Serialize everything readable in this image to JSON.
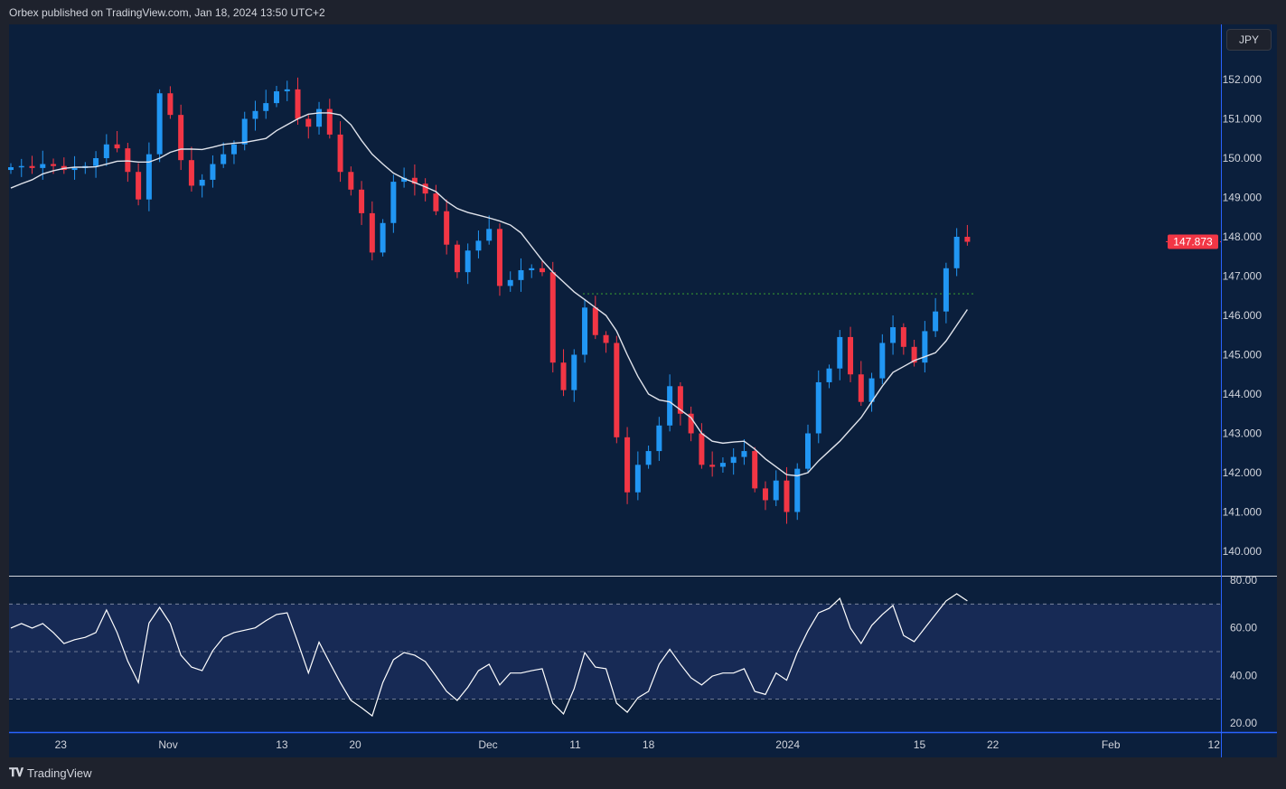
{
  "header": {
    "text": "Orbex published on TradingView.com, Jan 18, 2024 13:50 UTC+2"
  },
  "footer": {
    "brand": "TradingView",
    "logo_text": "TV"
  },
  "currency_button": "JPY",
  "colors": {
    "up": "#2196f3",
    "down": "#f23645",
    "ma": "#e0e3eb",
    "rsi": "#ffffff",
    "level": "#2e7d32",
    "background": "#0b1f3c"
  },
  "chart_data": [
    {
      "type": "candlestick",
      "title": "",
      "ylim": [
        139.6,
        153.3
      ],
      "ytick_labels": [
        "152.000",
        "151.000",
        "150.000",
        "149.000",
        "148.000",
        "147.000",
        "146.000",
        "145.000",
        "144.000",
        "143.000",
        "142.000",
        "141.000",
        "140.000"
      ],
      "yticks": [
        152,
        151,
        150,
        149,
        148,
        147,
        146,
        145,
        144,
        143,
        142,
        141,
        140
      ],
      "last_price": 147.873,
      "last_price_label": "147.873",
      "horizontal_level": 146.55,
      "xticks": [
        {
          "label": "23",
          "index": 4.7
        },
        {
          "label": "Nov",
          "index": 14.8
        },
        {
          "label": "13",
          "index": 25.5
        },
        {
          "label": "20",
          "index": 32.4
        },
        {
          "label": "Dec",
          "index": 44.9
        },
        {
          "label": "11",
          "index": 53.1
        },
        {
          "label": "18",
          "index": 60.0
        },
        {
          "label": "2024",
          "index": 73.1
        },
        {
          "label": "15",
          "index": 85.5
        },
        {
          "label": "22",
          "index": 92.4
        },
        {
          "label": "Feb",
          "index": 103.5
        },
        {
          "label": "12",
          "index": 113.2
        }
      ],
      "close": [
        149.77,
        149.8,
        149.75,
        149.85,
        149.8,
        149.7,
        149.75,
        149.8,
        150.0,
        150.35,
        150.25,
        149.65,
        148.95,
        150.1,
        151.65,
        151.1,
        149.95,
        149.3,
        149.45,
        149.85,
        150.1,
        150.35,
        151.0,
        151.2,
        151.4,
        151.7,
        151.75,
        151.0,
        150.8,
        151.25,
        150.6,
        149.65,
        149.2,
        148.6,
        147.6,
        148.35,
        149.4,
        149.5,
        149.35,
        149.1,
        148.65,
        147.8,
        147.1,
        147.65,
        147.9,
        148.2,
        146.75,
        146.9,
        147.15,
        147.2,
        147.1,
        144.8,
        144.1,
        145.0,
        146.2,
        145.5,
        145.3,
        142.9,
        141.5,
        142.2,
        142.55,
        143.2,
        144.2,
        143.5,
        143.0,
        142.2,
        142.15,
        142.25,
        142.4,
        142.55,
        141.6,
        141.3,
        141.8,
        141.0,
        142.1,
        143.0,
        144.3,
        144.65,
        145.45,
        144.5,
        143.8,
        144.4,
        145.3,
        145.7,
        145.2,
        144.8,
        145.6,
        146.1,
        147.2,
        148.0,
        147.873
      ],
      "moving_average": [
        149.24,
        149.35,
        149.45,
        149.6,
        149.68,
        149.74,
        149.77,
        149.77,
        149.78,
        149.85,
        149.92,
        149.93,
        149.9,
        149.9,
        150.0,
        150.15,
        150.23,
        150.23,
        150.22,
        150.28,
        150.35,
        150.38,
        150.4,
        150.45,
        150.5,
        150.7,
        150.85,
        151.0,
        151.12,
        151.15,
        151.15,
        151.1,
        150.85,
        150.45,
        150.1,
        149.85,
        149.62,
        149.48,
        149.38,
        149.27,
        149.15,
        148.9,
        148.72,
        148.62,
        148.55,
        148.48,
        148.4,
        148.3,
        148.1,
        147.75,
        147.4,
        147.1,
        146.85,
        146.6,
        146.4,
        146.2,
        146.0,
        145.6,
        145.0,
        144.45,
        144.0,
        143.85,
        143.8,
        143.6,
        143.4,
        143.0,
        142.8,
        142.75,
        142.78,
        142.8,
        142.6,
        142.35,
        142.15,
        141.95,
        141.92,
        142.0,
        142.3,
        142.55,
        142.8,
        143.1,
        143.4,
        143.8,
        144.2,
        144.55,
        144.7,
        144.85,
        144.95,
        145.05,
        145.35,
        145.75,
        146.15
      ]
    },
    {
      "type": "line",
      "title": "",
      "ylim": [
        17,
        82
      ],
      "yticks": [
        80,
        60,
        40,
        20
      ],
      "ytick_labels": [
        "80.00",
        "60.00",
        "40.00",
        "20.00"
      ],
      "levels": [
        70,
        50,
        30
      ],
      "values": [
        59.9,
        61.8,
        59.9,
        61.8,
        58,
        53.4,
        55,
        56,
        58,
        67.5,
        58,
        46,
        37,
        62,
        68.6,
        61.8,
        48.5,
        43.5,
        42,
        50.4,
        56,
        58,
        59,
        60,
        63,
        65.6,
        66.3,
        54,
        41,
        54,
        45.4,
        37,
        29.5,
        26.4,
        23,
        37,
        46.6,
        49.6,
        48.5,
        45.8,
        39.7,
        33.3,
        29.5,
        35,
        42,
        44.7,
        36,
        41,
        41,
        42,
        42.8,
        28.3,
        23.8,
        34.4,
        49.6,
        43.5,
        42.8,
        28.3,
        24.5,
        30.6,
        33.3,
        44.7,
        51,
        44.7,
        39,
        36,
        39.7,
        41,
        41,
        42.8,
        33.3,
        32,
        41,
        38,
        49.6,
        58.7,
        66.3,
        68.2,
        72.4,
        59.9,
        53.4,
        61,
        65.6,
        69.4,
        56.8,
        54.2,
        59.9,
        65.6,
        71.3,
        74.3,
        71.3
      ]
    }
  ]
}
